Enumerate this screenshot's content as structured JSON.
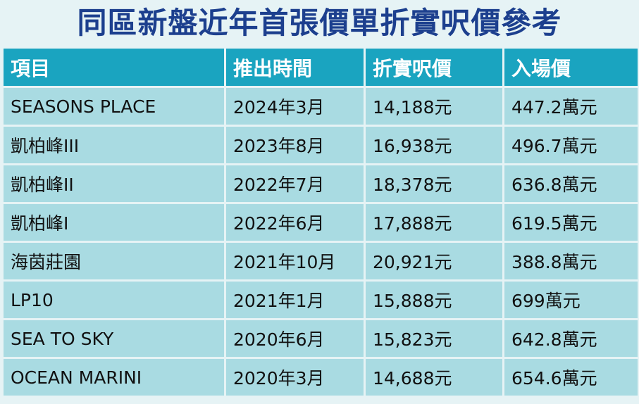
{
  "title": "同區新盤近年首張價單折實呎價參考",
  "table": {
    "headers": [
      "項目",
      "推出時間",
      "折實呎價",
      "入場價"
    ],
    "rows": [
      [
        "SEASONS PLACE",
        "2024年3月",
        "14,188元",
        "447.2萬元"
      ],
      [
        "凱柏峰III",
        "2023年8月",
        "16,938元",
        "496.7萬元"
      ],
      [
        "凱柏峰II",
        "2022年7月",
        "18,378元",
        "636.8萬元"
      ],
      [
        "凱柏峰I",
        "2022年6月",
        "17,888元",
        "619.5萬元"
      ],
      [
        "海茵莊園",
        "2021年10月",
        "20,921元",
        "388.8萬元"
      ],
      [
        "LP10",
        "2021年1月",
        "15,888元",
        "699萬元"
      ],
      [
        "SEA TO SKY",
        "2020年6月",
        "15,823元",
        "642.8萬元"
      ],
      [
        "OCEAN MARINI",
        "2020年3月",
        "14,688元",
        "654.6萬元"
      ]
    ]
  },
  "colors": {
    "title": "#1c3f8e",
    "header_bg": "#1aa4c0",
    "header_text": "#ffffff",
    "cell_bg": "#a9dbe2",
    "background": "#e6f3f5"
  }
}
